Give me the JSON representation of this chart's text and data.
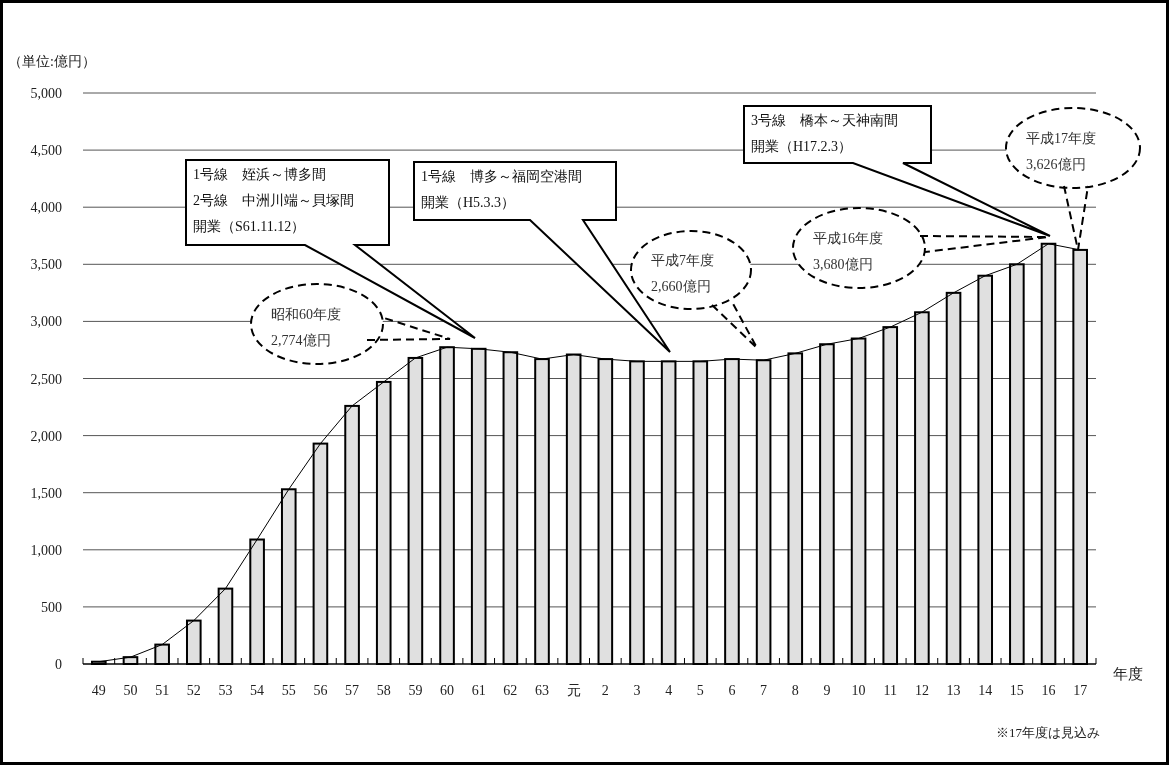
{
  "chart_data": {
    "type": "bar",
    "ylabel": "（単位:億円）",
    "xlabel": "年度",
    "categories": [
      "49",
      "50",
      "51",
      "52",
      "53",
      "54",
      "55",
      "56",
      "57",
      "58",
      "59",
      "60",
      "61",
      "62",
      "63",
      "元",
      "2",
      "3",
      "4",
      "5",
      "6",
      "7",
      "8",
      "9",
      "10",
      "11",
      "12",
      "13",
      "14",
      "15",
      "16",
      "17"
    ],
    "series": [
      {
        "color": "#e0e0e0",
        "values": [
          20,
          60,
          170,
          380,
          660,
          1090,
          1530,
          1930,
          2260,
          2470,
          2680,
          2774,
          2760,
          2730,
          2670,
          2710,
          2670,
          2650,
          2650,
          2650,
          2670,
          2660,
          2720,
          2800,
          2850,
          2950,
          3080,
          3250,
          3400,
          3500,
          3680,
          3626
        ]
      },
      {
        "type": "line",
        "color": "#000000",
        "values": [
          20,
          60,
          170,
          380,
          660,
          1090,
          1530,
          1930,
          2260,
          2470,
          2680,
          2774,
          2760,
          2730,
          2670,
          2710,
          2670,
          2650,
          2650,
          2650,
          2670,
          2660,
          2720,
          2800,
          2850,
          2950,
          3080,
          3250,
          3400,
          3500,
          3680,
          3626
        ]
      }
    ],
    "ylim": [
      0,
      5000
    ],
    "yticks": [
      0,
      500,
      {
        "value": 1000,
        "label": "1,000"
      },
      {
        "value": 1500,
        "label": "1,500"
      },
      {
        "value": 2000,
        "label": "2,000"
      },
      {
        "value": 2500,
        "label": "2,500"
      },
      {
        "value": 3000,
        "label": "3,000"
      },
      {
        "value": 3500,
        "label": "3,500"
      },
      {
        "value": 4000,
        "label": "4,000"
      },
      {
        "value": 4500,
        "label": "4,500"
      },
      {
        "value": 5000,
        "label": "5,000"
      }
    ],
    "grid": "y",
    "annotations": [
      "1号線　姪浜～博多間",
      "2号線　中洲川端～貝塚間",
      "開業（S61.11.12）",
      "1号線　博多～福岡空港間",
      "開業（H5.3.3）",
      "3号線　橋本～天神南間",
      "開業（H17.2.3）",
      "昭和60年度",
      "2,774億円",
      "平成7年度",
      "2,660億円",
      "平成16年度",
      "3,680億円",
      "平成17年度",
      "3,626億円",
      "※17年度は見込み"
    ]
  }
}
